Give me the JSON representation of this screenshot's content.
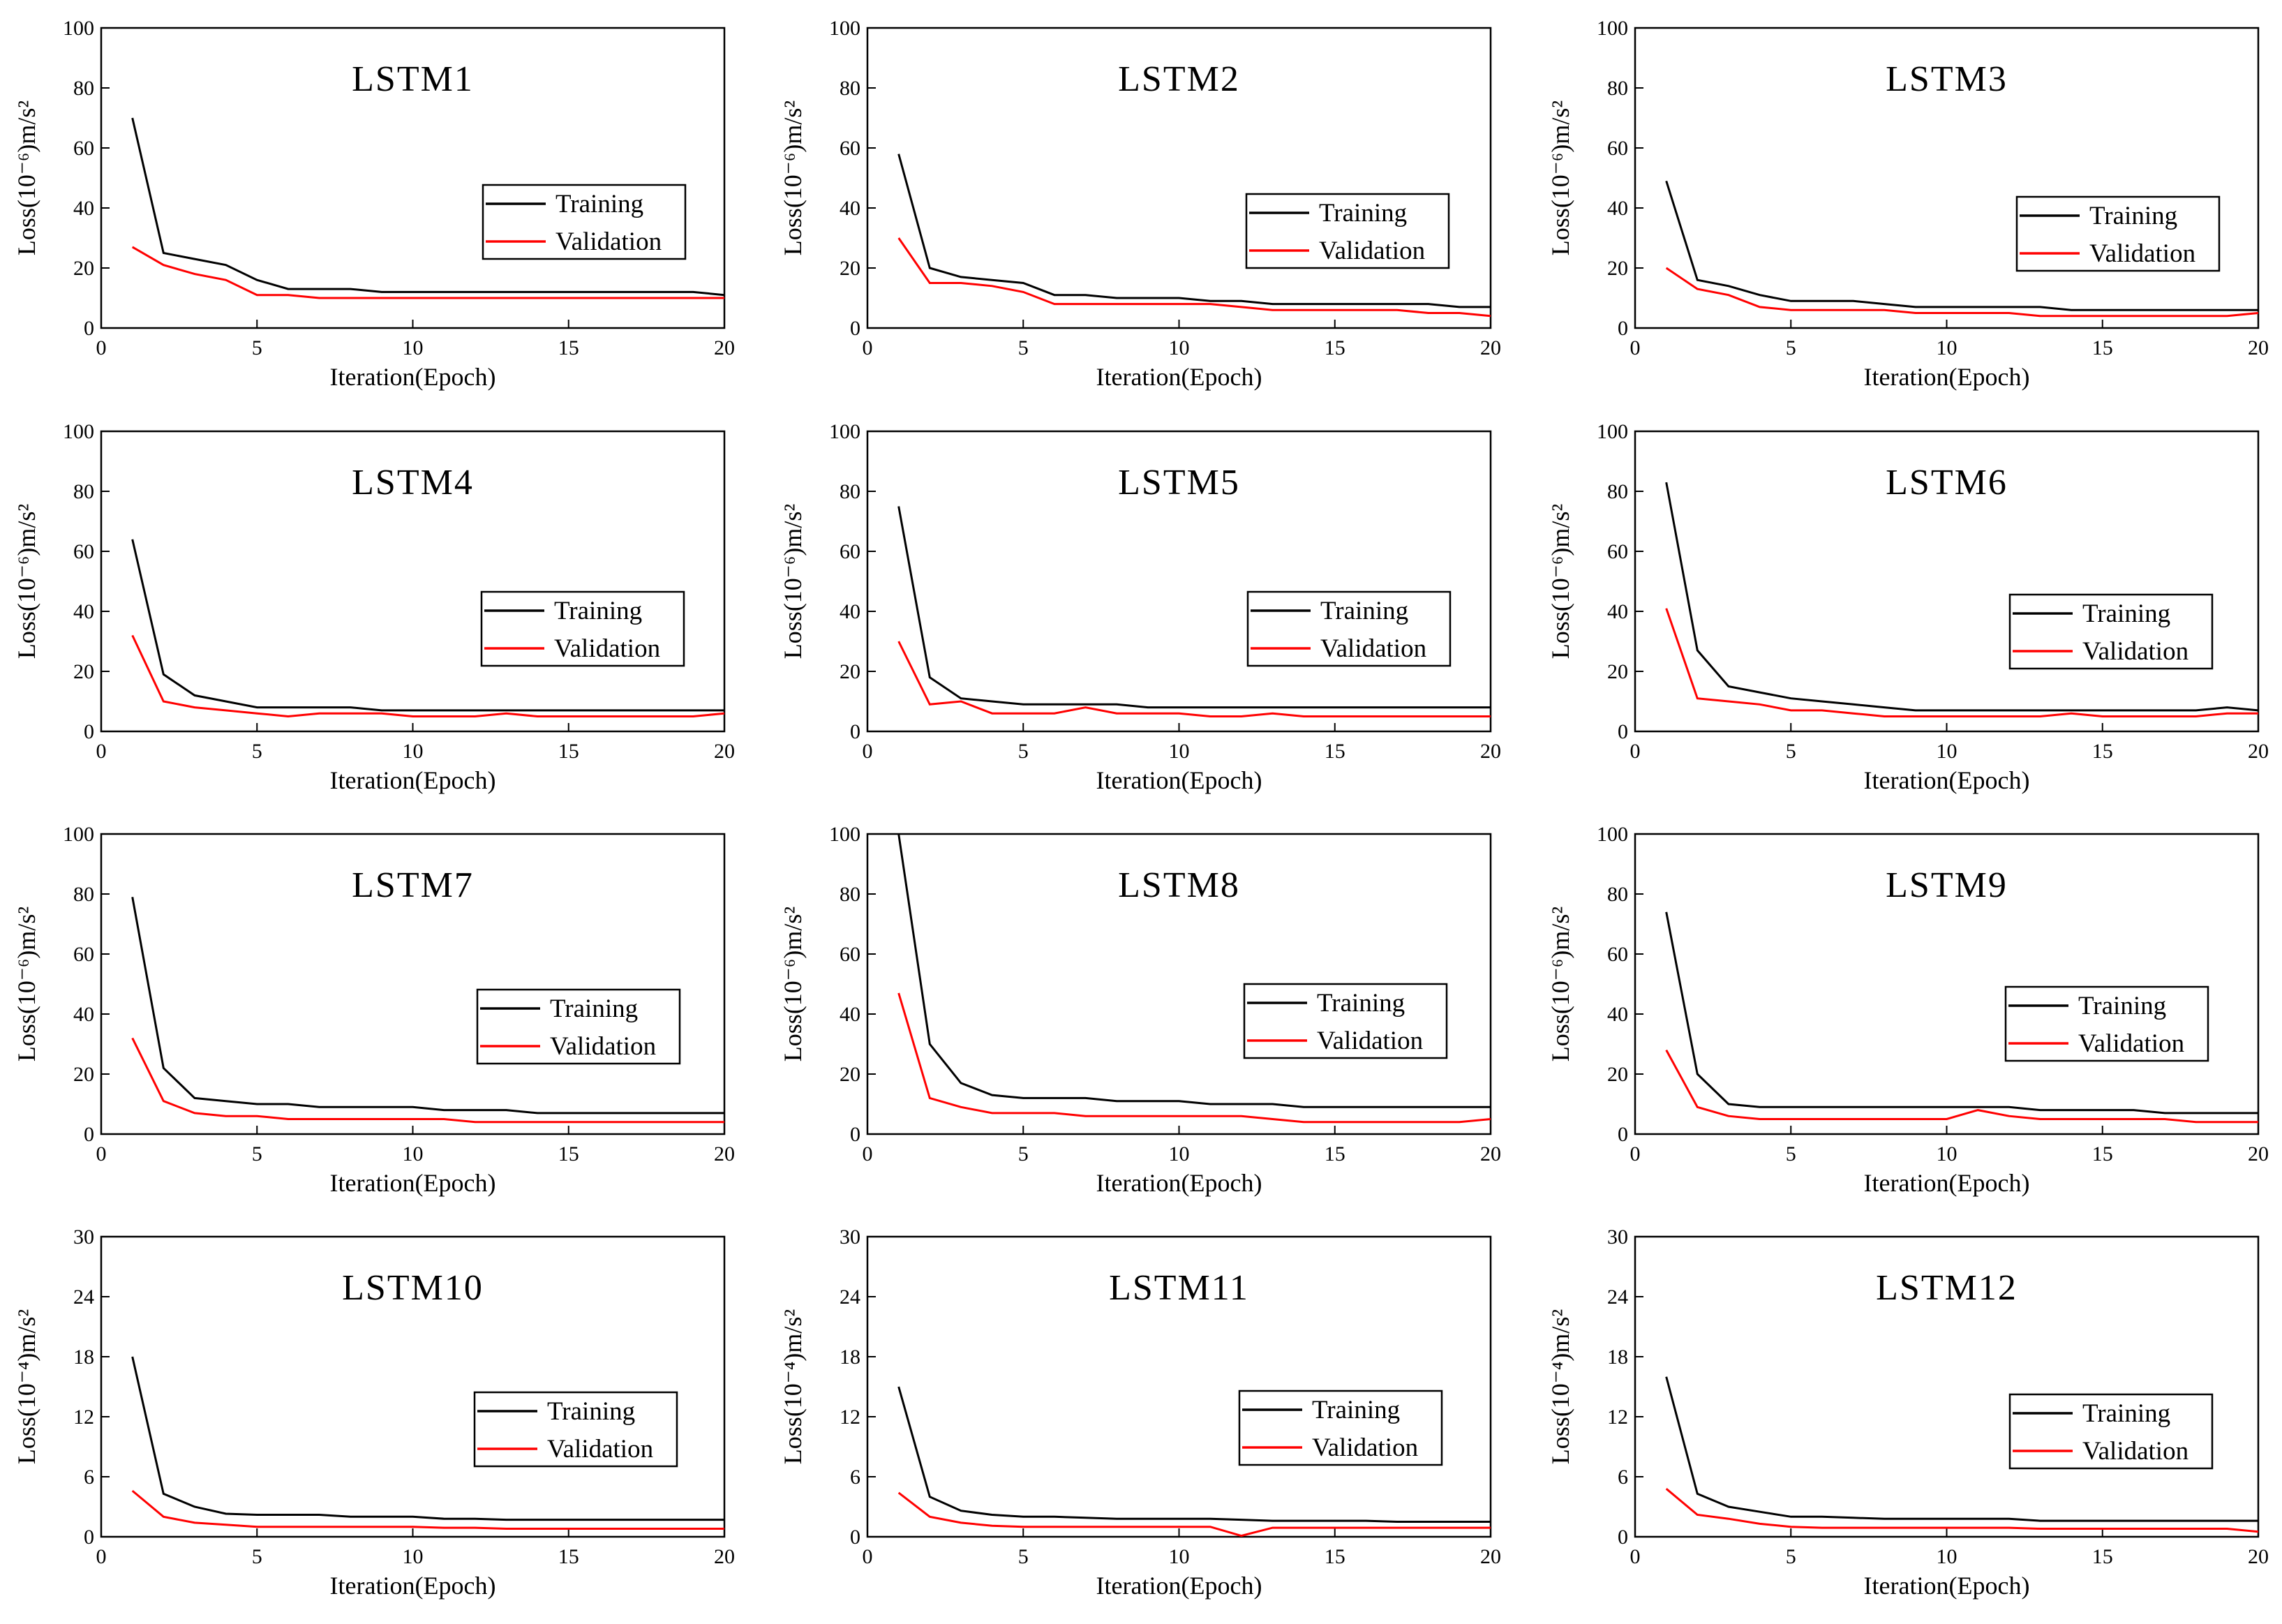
{
  "chart_data": [
    {
      "type": "line",
      "title": "LSTM1",
      "xlabel": "Iteration(Epoch)",
      "ylabel": "Loss(10⁻⁶)m/s²",
      "xlim": [
        0,
        20
      ],
      "ylim": [
        0,
        100
      ],
      "xticks": [
        0,
        5,
        10,
        15,
        20
      ],
      "yticks": [
        0,
        20,
        40,
        60,
        80,
        100
      ],
      "legend": "right",
      "x": [
        1,
        2,
        3,
        4,
        5,
        6,
        7,
        8,
        9,
        10,
        11,
        12,
        13,
        14,
        15,
        16,
        17,
        18,
        19,
        20
      ],
      "series": [
        {
          "name": "Training",
          "color": "#000000",
          "values": [
            70,
            25,
            23,
            21,
            16,
            13,
            13,
            13,
            12,
            12,
            12,
            12,
            12,
            12,
            12,
            12,
            12,
            12,
            12,
            11
          ]
        },
        {
          "name": "Validation",
          "color": "#ff0000",
          "values": [
            27,
            21,
            18,
            16,
            11,
            11,
            10,
            10,
            10,
            10,
            10,
            10,
            10,
            10,
            10,
            10,
            10,
            10,
            10,
            10
          ]
        }
      ]
    },
    {
      "type": "line",
      "title": "LSTM2",
      "xlabel": "Iteration(Epoch)",
      "ylabel": "Loss(10⁻⁶)m/s²",
      "xlim": [
        0,
        20
      ],
      "ylim": [
        0,
        100
      ],
      "xticks": [
        0,
        5,
        10,
        15,
        20
      ],
      "yticks": [
        0,
        20,
        40,
        60,
        80,
        100
      ],
      "legend": "right",
      "x": [
        1,
        2,
        3,
        4,
        5,
        6,
        7,
        8,
        9,
        10,
        11,
        12,
        13,
        14,
        15,
        16,
        17,
        18,
        19,
        20
      ],
      "series": [
        {
          "name": "Training",
          "color": "#000000",
          "values": [
            58,
            20,
            17,
            16,
            15,
            11,
            11,
            10,
            10,
            10,
            9,
            9,
            8,
            8,
            8,
            8,
            8,
            8,
            7,
            7
          ]
        },
        {
          "name": "Validation",
          "color": "#ff0000",
          "values": [
            30,
            15,
            15,
            14,
            12,
            8,
            8,
            8,
            8,
            8,
            8,
            7,
            6,
            6,
            6,
            6,
            6,
            5,
            5,
            4
          ]
        }
      ]
    },
    {
      "type": "line",
      "title": "LSTM3",
      "xlabel": "Iteration(Epoch)",
      "ylabel": "Loss(10⁻⁶)m/s²",
      "xlim": [
        0,
        20
      ],
      "ylim": [
        0,
        100
      ],
      "xticks": [
        0,
        5,
        10,
        15,
        20
      ],
      "yticks": [
        0,
        20,
        40,
        60,
        80,
        100
      ],
      "legend": "right",
      "x": [
        1,
        2,
        3,
        4,
        5,
        6,
        7,
        8,
        9,
        10,
        11,
        12,
        13,
        14,
        15,
        16,
        17,
        18,
        19,
        20
      ],
      "series": [
        {
          "name": "Training",
          "color": "#000000",
          "values": [
            49,
            16,
            14,
            11,
            9,
            9,
            9,
            8,
            7,
            7,
            7,
            7,
            7,
            6,
            6,
            6,
            6,
            6,
            6,
            6
          ]
        },
        {
          "name": "Validation",
          "color": "#ff0000",
          "values": [
            20,
            13,
            11,
            7,
            6,
            6,
            6,
            6,
            5,
            5,
            5,
            5,
            4,
            4,
            4,
            4,
            4,
            4,
            4,
            5
          ]
        }
      ]
    },
    {
      "type": "line",
      "title": "LSTM4",
      "xlabel": "Iteration(Epoch)",
      "ylabel": "Loss(10⁻⁶)m/s²",
      "xlim": [
        0,
        20
      ],
      "ylim": [
        0,
        100
      ],
      "xticks": [
        0,
        5,
        10,
        15,
        20
      ],
      "yticks": [
        0,
        20,
        40,
        60,
        80,
        100
      ],
      "legend": "right",
      "x": [
        1,
        2,
        3,
        4,
        5,
        6,
        7,
        8,
        9,
        10,
        11,
        12,
        13,
        14,
        15,
        16,
        17,
        18,
        19,
        20
      ],
      "series": [
        {
          "name": "Training",
          "color": "#000000",
          "values": [
            64,
            19,
            12,
            10,
            8,
            8,
            8,
            8,
            7,
            7,
            7,
            7,
            7,
            7,
            7,
            7,
            7,
            7,
            7,
            7
          ]
        },
        {
          "name": "Validation",
          "color": "#ff0000",
          "values": [
            32,
            10,
            8,
            7,
            6,
            5,
            6,
            6,
            6,
            5,
            5,
            5,
            6,
            5,
            5,
            5,
            5,
            5,
            5,
            6
          ]
        }
      ]
    },
    {
      "type": "line",
      "title": "LSTM5",
      "xlabel": "Iteration(Epoch)",
      "ylabel": "Loss(10⁻⁶)m/s²",
      "xlim": [
        0,
        20
      ],
      "ylim": [
        0,
        100
      ],
      "xticks": [
        0,
        5,
        10,
        15,
        20
      ],
      "yticks": [
        0,
        20,
        40,
        60,
        80,
        100
      ],
      "legend": "right",
      "x": [
        1,
        2,
        3,
        4,
        5,
        6,
        7,
        8,
        9,
        10,
        11,
        12,
        13,
        14,
        15,
        16,
        17,
        18,
        19,
        20
      ],
      "series": [
        {
          "name": "Training",
          "color": "#000000",
          "values": [
            75,
            18,
            11,
            10,
            9,
            9,
            9,
            9,
            8,
            8,
            8,
            8,
            8,
            8,
            8,
            8,
            8,
            8,
            8,
            8
          ]
        },
        {
          "name": "Validation",
          "color": "#ff0000",
          "values": [
            30,
            9,
            10,
            6,
            6,
            6,
            8,
            6,
            6,
            6,
            5,
            5,
            6,
            5,
            5,
            5,
            5,
            5,
            5,
            5
          ]
        }
      ]
    },
    {
      "type": "line",
      "title": "LSTM6",
      "xlabel": "Iteration(Epoch)",
      "ylabel": "Loss(10⁻⁶)m/s²",
      "xlim": [
        0,
        20
      ],
      "ylim": [
        0,
        100
      ],
      "xticks": [
        0,
        5,
        10,
        15,
        20
      ],
      "yticks": [
        0,
        20,
        40,
        60,
        80,
        100
      ],
      "legend": "right",
      "x": [
        1,
        2,
        3,
        4,
        5,
        6,
        7,
        8,
        9,
        10,
        11,
        12,
        13,
        14,
        15,
        16,
        17,
        18,
        19,
        20
      ],
      "series": [
        {
          "name": "Training",
          "color": "#000000",
          "values": [
            83,
            27,
            15,
            13,
            11,
            10,
            9,
            8,
            7,
            7,
            7,
            7,
            7,
            7,
            7,
            7,
            7,
            7,
            8,
            7
          ]
        },
        {
          "name": "Validation",
          "color": "#ff0000",
          "values": [
            41,
            11,
            10,
            9,
            7,
            7,
            6,
            5,
            5,
            5,
            5,
            5,
            5,
            6,
            5,
            5,
            5,
            5,
            6,
            6
          ]
        }
      ]
    },
    {
      "type": "line",
      "title": "LSTM7",
      "xlabel": "Iteration(Epoch)",
      "ylabel": "Loss(10⁻⁶)m/s²",
      "xlim": [
        0,
        20
      ],
      "ylim": [
        0,
        100
      ],
      "xticks": [
        0,
        5,
        10,
        15,
        20
      ],
      "yticks": [
        0,
        20,
        40,
        60,
        80,
        100
      ],
      "legend": "right",
      "x": [
        1,
        2,
        3,
        4,
        5,
        6,
        7,
        8,
        9,
        10,
        11,
        12,
        13,
        14,
        15,
        16,
        17,
        18,
        19,
        20
      ],
      "series": [
        {
          "name": "Training",
          "color": "#000000",
          "values": [
            79,
            22,
            12,
            11,
            10,
            10,
            9,
            9,
            9,
            9,
            8,
            8,
            8,
            7,
            7,
            7,
            7,
            7,
            7,
            7
          ]
        },
        {
          "name": "Validation",
          "color": "#ff0000",
          "values": [
            32,
            11,
            7,
            6,
            6,
            5,
            5,
            5,
            5,
            5,
            5,
            4,
            4,
            4,
            4,
            4,
            4,
            4,
            4,
            4
          ]
        }
      ]
    },
    {
      "type": "line",
      "title": "LSTM8",
      "xlabel": "Iteration(Epoch)",
      "ylabel": "Loss(10⁻⁶)m/s²",
      "xlim": [
        0,
        20
      ],
      "ylim": [
        0,
        100
      ],
      "xticks": [
        0,
        5,
        10,
        15,
        20
      ],
      "yticks": [
        0,
        20,
        40,
        60,
        80,
        100
      ],
      "legend": "right",
      "x": [
        1,
        2,
        3,
        4,
        5,
        6,
        7,
        8,
        9,
        10,
        11,
        12,
        13,
        14,
        15,
        16,
        17,
        18,
        19,
        20
      ],
      "series": [
        {
          "name": "Training",
          "color": "#000000",
          "values": [
            100,
            30,
            17,
            13,
            12,
            12,
            12,
            11,
            11,
            11,
            10,
            10,
            10,
            9,
            9,
            9,
            9,
            9,
            9,
            9
          ]
        },
        {
          "name": "Validation",
          "color": "#ff0000",
          "values": [
            47,
            12,
            9,
            7,
            7,
            7,
            6,
            6,
            6,
            6,
            6,
            6,
            5,
            4,
            4,
            4,
            4,
            4,
            4,
            5
          ]
        }
      ]
    },
    {
      "type": "line",
      "title": "LSTM9",
      "xlabel": "Iteration(Epoch)",
      "ylabel": "Loss(10⁻⁶)m/s²",
      "xlim": [
        0,
        20
      ],
      "ylim": [
        0,
        100
      ],
      "xticks": [
        0,
        5,
        10,
        15,
        20
      ],
      "yticks": [
        0,
        20,
        40,
        60,
        80,
        100
      ],
      "legend": "right",
      "x": [
        1,
        2,
        3,
        4,
        5,
        6,
        7,
        8,
        9,
        10,
        11,
        12,
        13,
        14,
        15,
        16,
        17,
        18,
        19,
        20
      ],
      "series": [
        {
          "name": "Training",
          "color": "#000000",
          "values": [
            74,
            20,
            10,
            9,
            9,
            9,
            9,
            9,
            9,
            9,
            9,
            9,
            8,
            8,
            8,
            8,
            7,
            7,
            7,
            7
          ]
        },
        {
          "name": "Validation",
          "color": "#ff0000",
          "values": [
            28,
            9,
            6,
            5,
            5,
            5,
            5,
            5,
            5,
            5,
            8,
            6,
            5,
            5,
            5,
            5,
            5,
            4,
            4,
            4
          ]
        }
      ]
    },
    {
      "type": "line",
      "title": "LSTM10",
      "xlabel": "Iteration(Epoch)",
      "ylabel": "Loss(10⁻⁴)m/s²",
      "xlim": [
        0,
        20
      ],
      "ylim": [
        0,
        30
      ],
      "xticks": [
        0,
        5,
        10,
        15,
        20
      ],
      "yticks": [
        0,
        6,
        12,
        18,
        24,
        30
      ],
      "legend": "right",
      "x": [
        1,
        2,
        3,
        4,
        5,
        6,
        7,
        8,
        9,
        10,
        11,
        12,
        13,
        14,
        15,
        16,
        17,
        18,
        19,
        20
      ],
      "series": [
        {
          "name": "Training",
          "color": "#000000",
          "values": [
            18,
            4.3,
            3.0,
            2.3,
            2.2,
            2.2,
            2.2,
            2.0,
            2.0,
            2.0,
            1.8,
            1.8,
            1.7,
            1.7,
            1.7,
            1.7,
            1.7,
            1.7,
            1.7,
            1.7
          ]
        },
        {
          "name": "Validation",
          "color": "#ff0000",
          "values": [
            4.6,
            2.0,
            1.4,
            1.2,
            1.0,
            1.0,
            1.0,
            1.0,
            1.0,
            1.0,
            0.9,
            0.9,
            0.8,
            0.8,
            0.8,
            0.8,
            0.8,
            0.8,
            0.8,
            0.8
          ]
        }
      ]
    },
    {
      "type": "line",
      "title": "LSTM11",
      "xlabel": "Iteration(Epoch)",
      "ylabel": "Loss(10⁻⁴)m/s²",
      "xlim": [
        0,
        20
      ],
      "ylim": [
        0,
        30
      ],
      "xticks": [
        0,
        5,
        10,
        15,
        20
      ],
      "yticks": [
        0,
        6,
        12,
        18,
        24,
        30
      ],
      "legend": "right",
      "x": [
        1,
        2,
        3,
        4,
        5,
        6,
        7,
        8,
        9,
        10,
        11,
        12,
        13,
        14,
        15,
        16,
        17,
        18,
        19,
        20
      ],
      "series": [
        {
          "name": "Training",
          "color": "#000000",
          "values": [
            15,
            4.0,
            2.6,
            2.2,
            2.0,
            2.0,
            1.9,
            1.8,
            1.8,
            1.8,
            1.8,
            1.7,
            1.6,
            1.6,
            1.6,
            1.6,
            1.5,
            1.5,
            1.5,
            1.5
          ]
        },
        {
          "name": "Validation",
          "color": "#ff0000",
          "values": [
            4.4,
            2.0,
            1.4,
            1.1,
            1.0,
            1.0,
            1.0,
            1.0,
            1.0,
            1.0,
            1.0,
            0.1,
            0.9,
            0.9,
            0.9,
            0.9,
            0.9,
            0.9,
            0.9,
            0.9
          ]
        }
      ]
    },
    {
      "type": "line",
      "title": "LSTM12",
      "xlabel": "Iteration(Epoch)",
      "ylabel": "Loss(10⁻⁴)m/s²",
      "xlim": [
        0,
        20
      ],
      "ylim": [
        0,
        30
      ],
      "xticks": [
        0,
        5,
        10,
        15,
        20
      ],
      "yticks": [
        0,
        6,
        12,
        18,
        24,
        30
      ],
      "legend": "right",
      "x": [
        1,
        2,
        3,
        4,
        5,
        6,
        7,
        8,
        9,
        10,
        11,
        12,
        13,
        14,
        15,
        16,
        17,
        18,
        19,
        20
      ],
      "series": [
        {
          "name": "Training",
          "color": "#000000",
          "values": [
            16,
            4.3,
            3.0,
            2.5,
            2.0,
            2.0,
            1.9,
            1.8,
            1.8,
            1.8,
            1.8,
            1.8,
            1.6,
            1.6,
            1.6,
            1.6,
            1.6,
            1.6,
            1.6,
            1.6
          ]
        },
        {
          "name": "Validation",
          "color": "#ff0000",
          "values": [
            4.8,
            2.2,
            1.8,
            1.3,
            1.0,
            0.9,
            0.9,
            0.9,
            0.9,
            0.9,
            0.9,
            0.9,
            0.8,
            0.8,
            0.8,
            0.8,
            0.8,
            0.8,
            0.8,
            0.5
          ]
        }
      ]
    }
  ]
}
